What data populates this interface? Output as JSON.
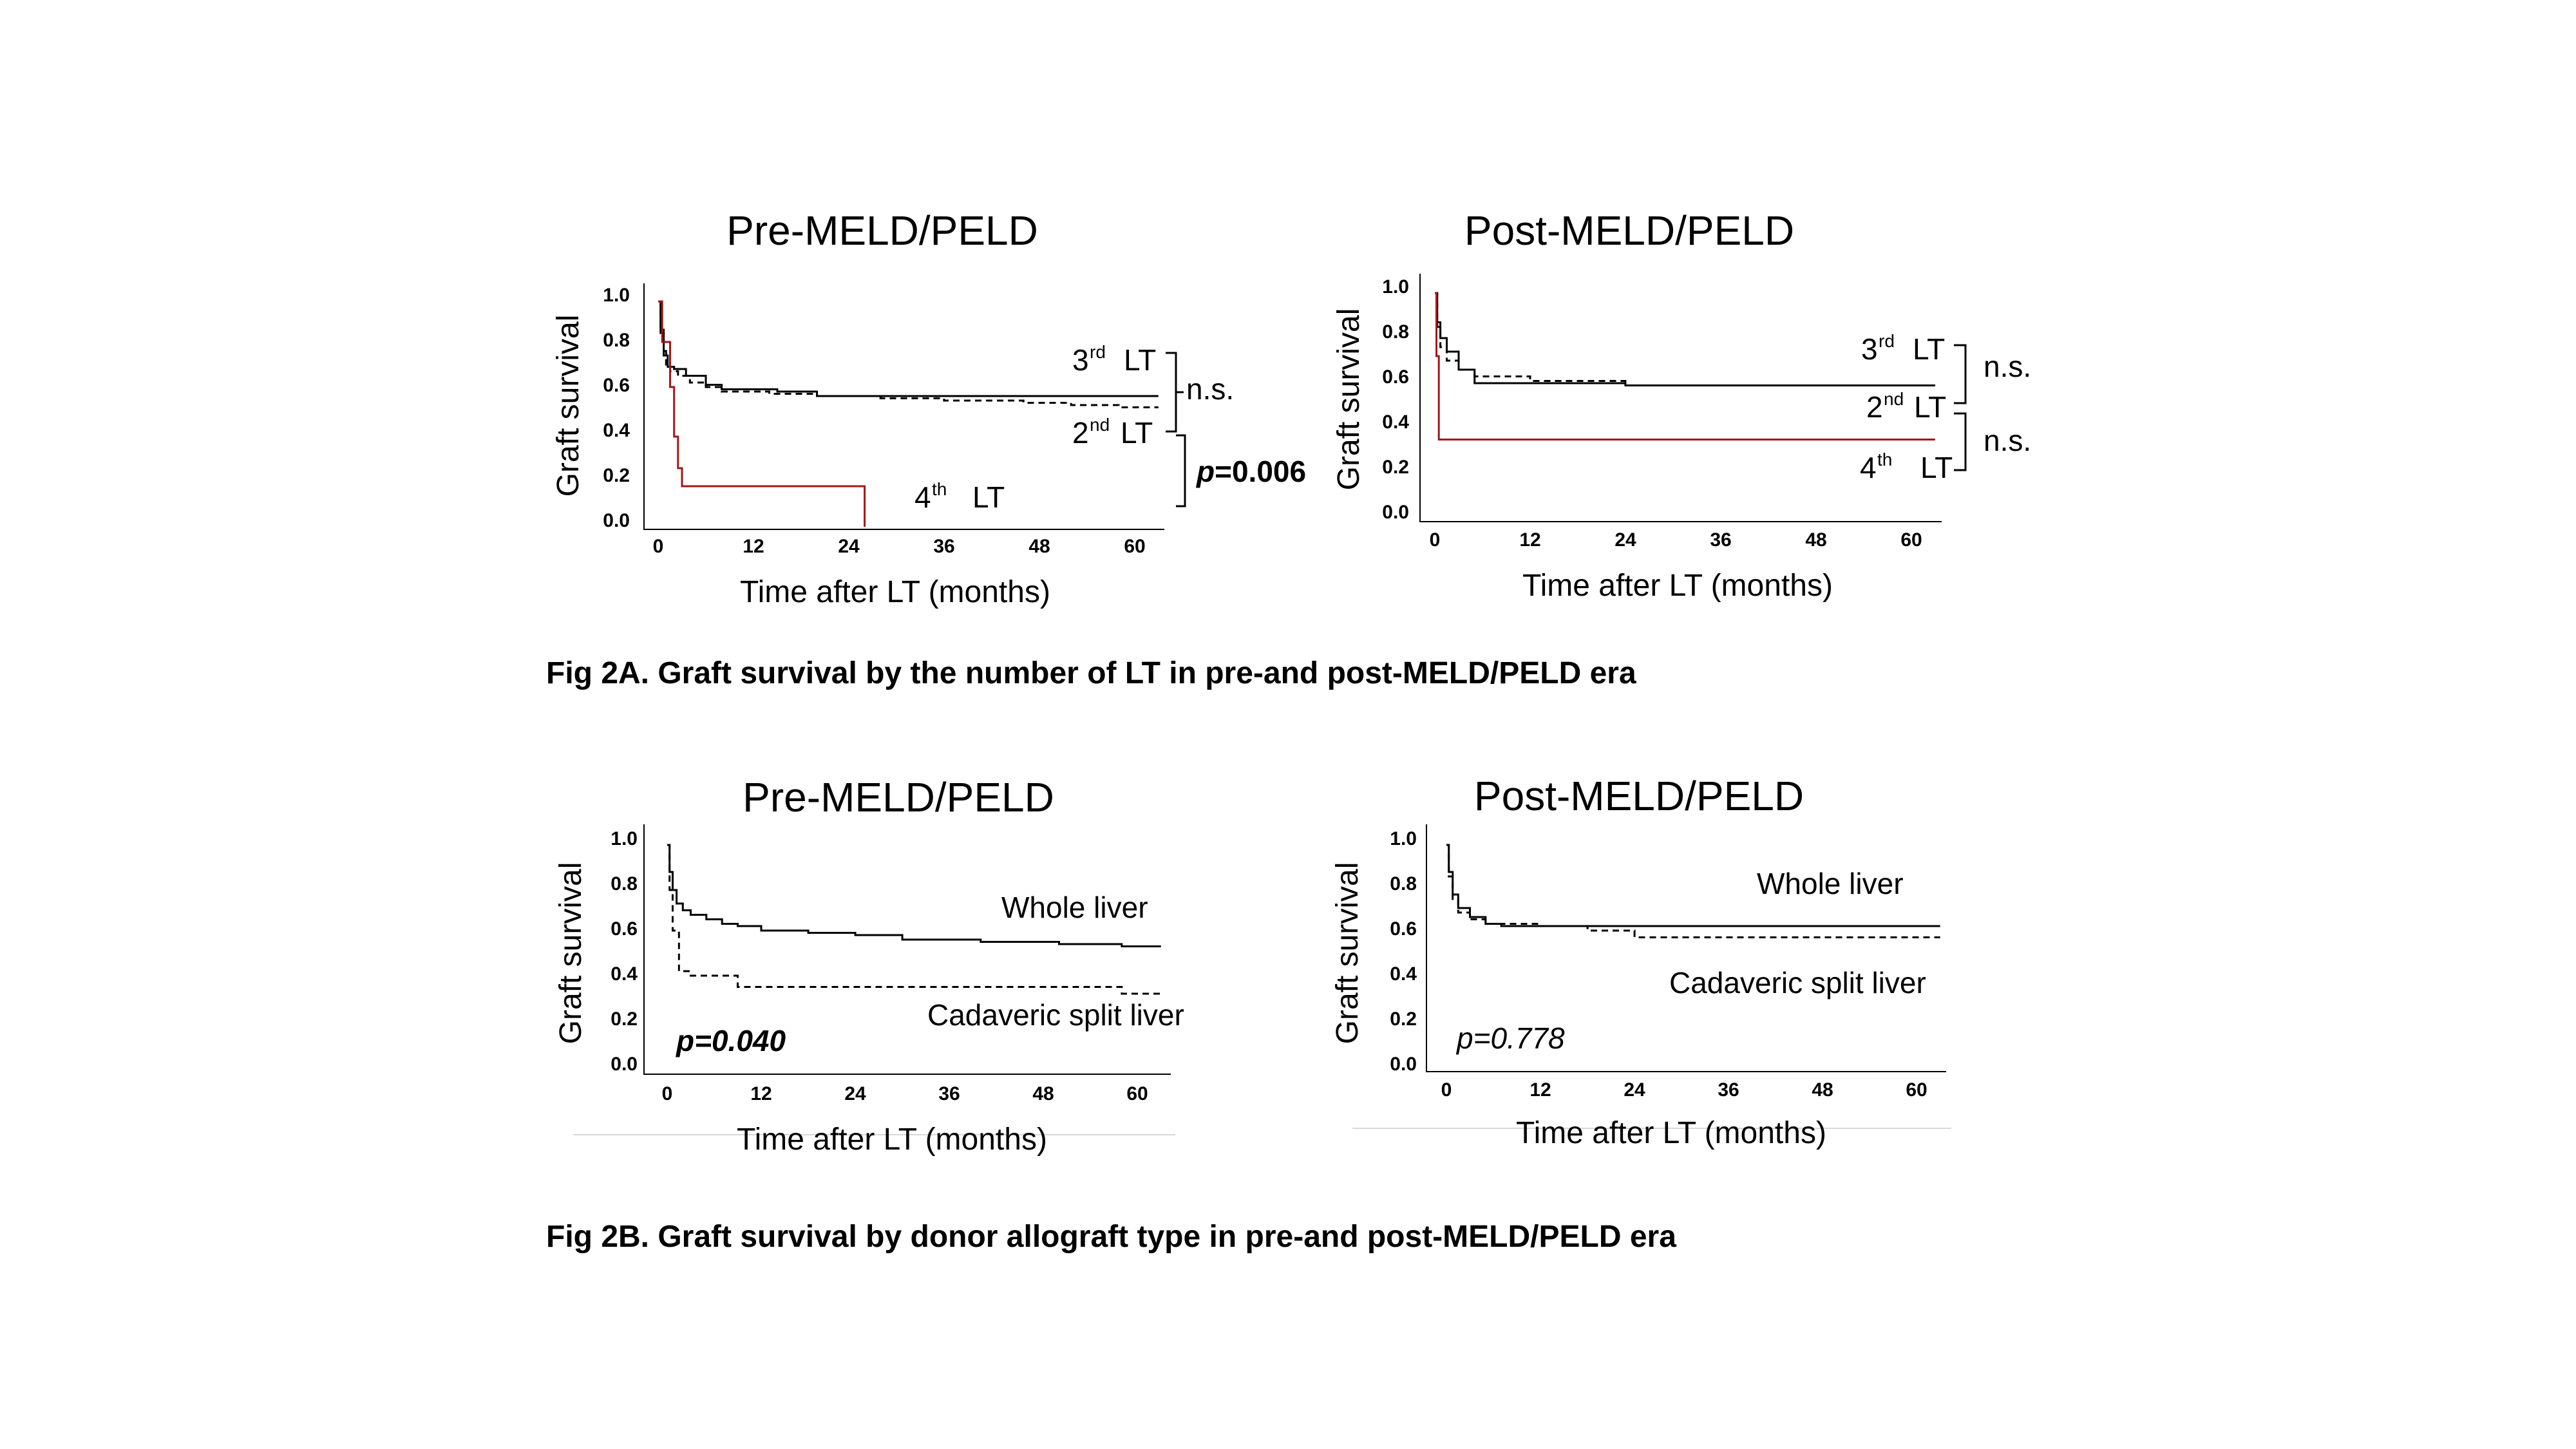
{
  "figure_captions": {
    "fig2a": "Fig 2A. Graft survival by the number of LT in pre-and post-MELD/PELD era",
    "fig2b": "Fig 2B. Graft survival by donor allograft type in pre-and post-MELD/PELD era"
  },
  "colors": {
    "red_series": "#a01818",
    "black_series": "#000000"
  },
  "chart_data": [
    {
      "type": "line",
      "title": "Pre-MELD/PELD",
      "xlabel": "Time after LT (months)",
      "ylabel": "Graft survival",
      "xlim": [
        -2,
        62
      ],
      "ylim": [
        0,
        1.0
      ],
      "xticks": [
        "0",
        "12",
        "24",
        "36",
        "48",
        "60"
      ],
      "yticks": [
        "0.0",
        "0.2",
        "0.4",
        "0.6",
        "0.8",
        "1.0"
      ],
      "series": [
        {
          "name": "2nd LT",
          "style": "dashed",
          "color": "#000000",
          "steps": [
            [
              0,
              1.0
            ],
            [
              0.3,
              0.88
            ],
            [
              0.7,
              0.78
            ],
            [
              1,
              0.72
            ],
            [
              1.5,
              0.69
            ],
            [
              2.5,
              0.67
            ],
            [
              4,
              0.64
            ],
            [
              6,
              0.62
            ],
            [
              8,
              0.6
            ],
            [
              14,
              0.59
            ],
            [
              20,
              0.58
            ],
            [
              28,
              0.57
            ],
            [
              36,
              0.56
            ],
            [
              46,
              0.55
            ],
            [
              52,
              0.54
            ],
            [
              58,
              0.53
            ],
            [
              63,
              0.53
            ]
          ]
        },
        {
          "name": "3rd LT",
          "style": "solid",
          "color": "#000000",
          "steps": [
            [
              0,
              1.0
            ],
            [
              0.3,
              0.86
            ],
            [
              0.7,
              0.76
            ],
            [
              1.2,
              0.71
            ],
            [
              2,
              0.7
            ],
            [
              3.5,
              0.67
            ],
            [
              6,
              0.63
            ],
            [
              8,
              0.61
            ],
            [
              15,
              0.6
            ],
            [
              20,
              0.58
            ],
            [
              63,
              0.58
            ]
          ]
        },
        {
          "name": "4th LT",
          "style": "solid",
          "color": "#a01818",
          "steps": [
            [
              0,
              1.0
            ],
            [
              0.5,
              0.82
            ],
            [
              1.5,
              0.62
            ],
            [
              2,
              0.4
            ],
            [
              2.5,
              0.26
            ],
            [
              3,
              0.18
            ],
            [
              26,
              0.18
            ],
            [
              26,
              0.0
            ]
          ]
        }
      ],
      "annotations": {
        "third_ordinal": "3",
        "third_sup": "rd",
        "third_lt": "LT",
        "second_ordinal": "2",
        "second_sup": "nd",
        "second_lt": "LT",
        "fourth_ordinal": "4",
        "fourth_sup": "th",
        "fourth_lt": "LT",
        "ns": "n.s.",
        "p_italic": "p",
        "p_value": "=0.006"
      }
    },
    {
      "type": "line",
      "title": "Post-MELD/PELD",
      "xlabel": "Time after LT (months)",
      "ylabel": "Graft survival",
      "xlim": [
        -2,
        62
      ],
      "ylim": [
        0,
        1.0
      ],
      "xticks": [
        "0",
        "12",
        "24",
        "36",
        "48",
        "60"
      ],
      "yticks": [
        "0.0",
        "0.2",
        "0.4",
        "0.6",
        "0.8",
        "1.0"
      ],
      "series": [
        {
          "name": "2nd LT",
          "style": "dashed",
          "color": "#000000",
          "steps": [
            [
              0,
              1.0
            ],
            [
              0.3,
              0.85
            ],
            [
              0.7,
              0.76
            ],
            [
              1.5,
              0.7
            ],
            [
              3,
              0.66
            ],
            [
              5,
              0.63
            ],
            [
              12,
              0.61
            ],
            [
              24,
              0.59
            ],
            [
              63,
              0.59
            ]
          ]
        },
        {
          "name": "3rd LT",
          "style": "solid",
          "color": "#000000",
          "steps": [
            [
              0,
              1.0
            ],
            [
              0.3,
              0.87
            ],
            [
              0.7,
              0.8
            ],
            [
              1.5,
              0.74
            ],
            [
              3,
              0.66
            ],
            [
              5,
              0.6
            ],
            [
              24,
              0.59
            ],
            [
              63,
              0.59
            ]
          ]
        },
        {
          "name": "4th LT",
          "style": "solid",
          "color": "#a01818",
          "steps": [
            [
              0,
              1.0
            ],
            [
              0.2,
              0.72
            ],
            [
              0.5,
              0.35
            ],
            [
              63,
              0.35
            ]
          ]
        }
      ],
      "annotations": {
        "third_ordinal": "3",
        "third_sup": "rd",
        "third_lt": "LT",
        "second_ordinal": "2",
        "second_sup": "nd",
        "second_lt": "LT",
        "fourth_ordinal": "4",
        "fourth_sup": "th",
        "fourth_lt": "LT",
        "ns_upper": "n.s.",
        "ns_lower": "n.s."
      }
    },
    {
      "type": "line",
      "title": "Pre-MELD/PELD",
      "xlabel": "Time after LT (months)",
      "ylabel": "Graft survival",
      "xlim": [
        -2,
        62
      ],
      "ylim": [
        0,
        1.0
      ],
      "xticks": [
        "0",
        "12",
        "24",
        "36",
        "48",
        "60"
      ],
      "yticks": [
        "0.0",
        "0.2",
        "0.4",
        "0.6",
        "0.8",
        "1.0"
      ],
      "series": [
        {
          "name": "Whole liver",
          "style": "solid",
          "color": "#000000",
          "steps": [
            [
              0,
              1.0
            ],
            [
              0.3,
              0.88
            ],
            [
              0.7,
              0.8
            ],
            [
              1.2,
              0.74
            ],
            [
              2,
              0.71
            ],
            [
              3,
              0.69
            ],
            [
              5,
              0.67
            ],
            [
              7,
              0.65
            ],
            [
              9,
              0.64
            ],
            [
              12,
              0.62
            ],
            [
              18,
              0.61
            ],
            [
              24,
              0.6
            ],
            [
              30,
              0.58
            ],
            [
              40,
              0.57
            ],
            [
              50,
              0.56
            ],
            [
              58,
              0.55
            ],
            [
              63,
              0.55
            ]
          ]
        },
        {
          "name": "Cadaveric split liver",
          "style": "dashed",
          "color": "#000000",
          "steps": [
            [
              0,
              1.0
            ],
            [
              0.3,
              0.8
            ],
            [
              0.7,
              0.62
            ],
            [
              1.5,
              0.44
            ],
            [
              3,
              0.42
            ],
            [
              9,
              0.37
            ],
            [
              58,
              0.37
            ],
            [
              58,
              0.34
            ],
            [
              63,
              0.34
            ]
          ]
        }
      ],
      "annotations": {
        "p_value": "p=0.040"
      }
    },
    {
      "type": "line",
      "title": "Post-MELD/PELD",
      "xlabel": "Time after LT (months)",
      "ylabel": "Graft survival",
      "xlim": [
        -2,
        62
      ],
      "ylim": [
        0,
        1.0
      ],
      "xticks": [
        "0",
        "12",
        "24",
        "36",
        "48",
        "60"
      ],
      "yticks": [
        "0.0",
        "0.2",
        "0.4",
        "0.6",
        "0.8",
        "1.0"
      ],
      "series": [
        {
          "name": "Whole liver",
          "style": "solid",
          "color": "#000000",
          "steps": [
            [
              0,
              1.0
            ],
            [
              0.3,
              0.88
            ],
            [
              0.8,
              0.78
            ],
            [
              1.5,
              0.72
            ],
            [
              3,
              0.68
            ],
            [
              5,
              0.65
            ],
            [
              7,
              0.64
            ],
            [
              60,
              0.64
            ],
            [
              63,
              0.64
            ]
          ]
        },
        {
          "name": "Cadaveric split liver",
          "style": "dashed",
          "color": "#000000",
          "steps": [
            [
              0,
              1.0
            ],
            [
              0.3,
              0.86
            ],
            [
              0.8,
              0.76
            ],
            [
              1.5,
              0.7
            ],
            [
              3,
              0.67
            ],
            [
              5,
              0.65
            ],
            [
              12,
              0.64
            ],
            [
              18,
              0.62
            ],
            [
              24,
              0.59
            ],
            [
              63,
              0.59
            ]
          ]
        }
      ],
      "annotations": {
        "p_value": "p=0.778"
      }
    }
  ]
}
